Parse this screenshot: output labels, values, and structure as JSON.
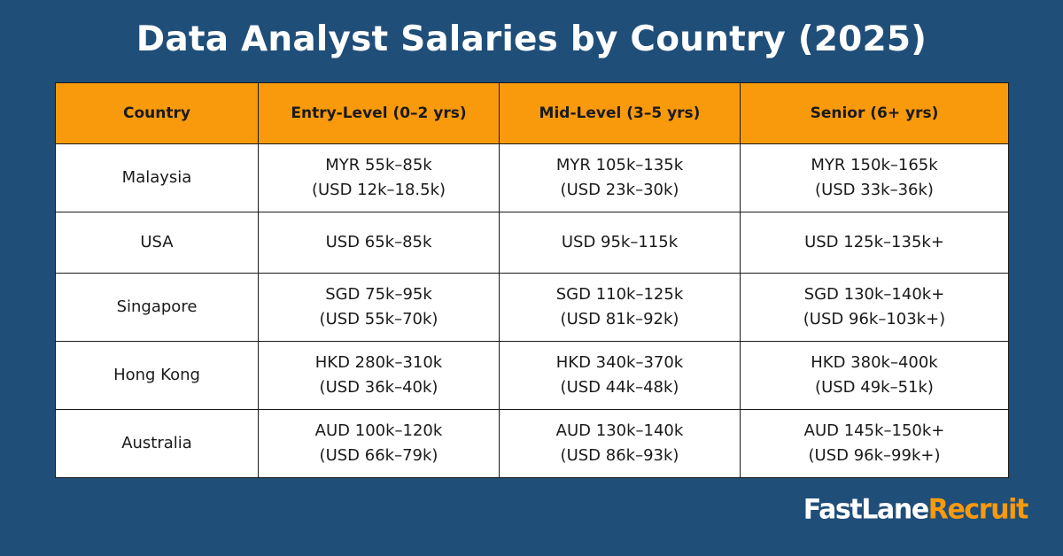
{
  "title": "Data Analyst Salaries by Country (2025)",
  "colors": {
    "background": "#1f4e79",
    "header": "#f89a0c",
    "accent": "#f89a0c"
  },
  "table": {
    "headers": [
      "Country",
      "Entry-Level (0–2 yrs)",
      "Mid-Level (3–5 yrs)",
      "Senior (6+ yrs)"
    ],
    "rows": [
      [
        "Malaysia",
        "MYR 55k–85k\n(USD 12k–18.5k)",
        "MYR 105k–135k\n(USD 23k–30k)",
        "MYR 150k–165k\n(USD 33k–36k)"
      ],
      [
        "USA",
        "USD 65k–85k",
        "USD 95k–115k",
        "USD 125k–135k+"
      ],
      [
        "Singapore",
        "SGD 75k–95k\n(USD 55k–70k)",
        "SGD 110k–125k\n(USD 81k–92k)",
        "SGD 130k–140k+\n(USD 96k–103k+)"
      ],
      [
        "Hong Kong",
        "HKD 280k–310k\n(USD 36k–40k)",
        "HKD 340k–370k\n(USD 44k–48k)",
        "HKD 380k–400k\n(USD 49k–51k)"
      ],
      [
        "Australia",
        "AUD 100k–120k\n(USD 66k–79k)",
        "AUD 130k–140k\n(USD 86k–93k)",
        "AUD 145k–150k+\n(USD 96k–99k+)"
      ]
    ]
  },
  "logo": {
    "part1": "FastLane",
    "part2": "Recruit"
  }
}
